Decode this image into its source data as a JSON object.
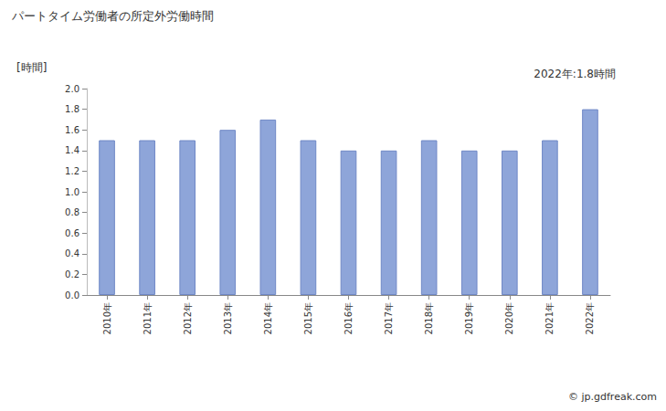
{
  "chart_data": {
    "type": "bar",
    "title": "パートタイム労働者の所定外労働時間",
    "ylabel": "[時間]",
    "annotation": "2022年:1.8時間",
    "source": "© jp.gdfreak.com",
    "categories": [
      "2010年",
      "2011年",
      "2012年",
      "2013年",
      "2014年",
      "2015年",
      "2016年",
      "2017年",
      "2018年",
      "2019年",
      "2020年",
      "2021年",
      "2022年"
    ],
    "values": [
      1.5,
      1.5,
      1.5,
      1.6,
      1.7,
      1.5,
      1.4,
      1.4,
      1.5,
      1.4,
      1.4,
      1.5,
      1.8
    ],
    "color": "#8ea5d9",
    "ylim": [
      0,
      2.0
    ],
    "yticks": [
      {
        "value": 0,
        "label": "0.0"
      },
      0.2,
      0.4,
      0.6,
      0.8,
      {
        "value": 1,
        "label": "1.0"
      },
      1.2,
      1.4,
      1.6,
      1.8,
      {
        "value": 2,
        "label": "2.0"
      }
    ],
    "grid": false
  }
}
